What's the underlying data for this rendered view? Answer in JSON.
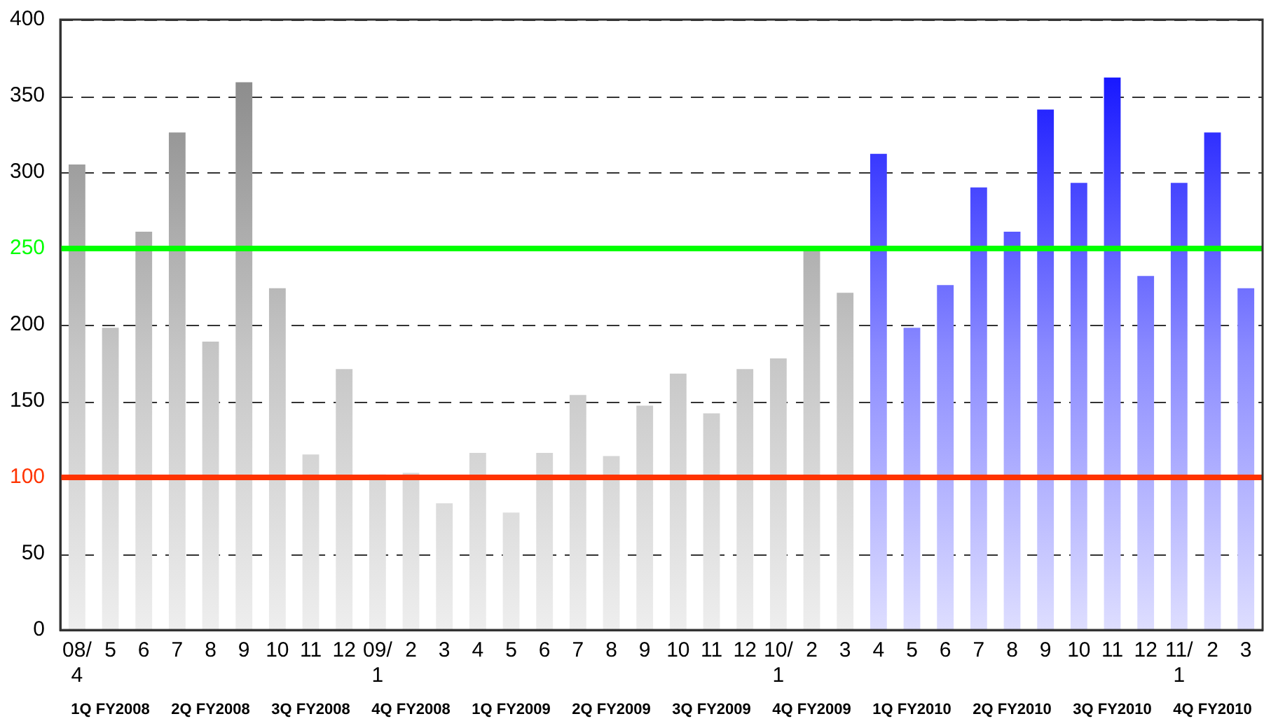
{
  "chart_data": {
    "type": "bar",
    "categories": [
      "08/\n4",
      "5",
      "6",
      "7",
      "8",
      "9",
      "10",
      "11",
      "12",
      "09/\n1",
      "2",
      "3",
      "4",
      "5",
      "6",
      "7",
      "8",
      "9",
      "10",
      "11",
      "12",
      "10/\n1",
      "2",
      "3",
      "4",
      "5",
      "6",
      "7",
      "8",
      "9",
      "10",
      "11",
      "12",
      "11/\n1",
      "2",
      "3"
    ],
    "values": [
      305,
      198,
      261,
      326,
      189,
      359,
      224,
      115,
      171,
      102,
      103,
      83,
      116,
      77,
      116,
      154,
      114,
      147,
      168,
      142,
      171,
      178,
      250,
      221,
      312,
      198,
      226,
      290,
      261,
      341,
      293,
      362,
      232,
      293,
      326,
      224
    ],
    "colors": [
      "#808080",
      "#808080",
      "#808080",
      "#808080",
      "#808080",
      "#808080",
      "#808080",
      "#808080",
      "#808080",
      "#808080",
      "#808080",
      "#808080",
      "#808080",
      "#808080",
      "#808080",
      "#808080",
      "#808080",
      "#808080",
      "#808080",
      "#808080",
      "#808080",
      "#808080",
      "#808080",
      "#808080",
      "#0000ff",
      "#0000ff",
      "#0000ff",
      "#0000ff",
      "#0000ff",
      "#0000ff",
      "#0000ff",
      "#0000ff",
      "#0000ff",
      "#0000ff",
      "#0000ff",
      "#0000ff"
    ],
    "ylim": [
      0,
      400
    ],
    "yticks": [
      0,
      50,
      100,
      150,
      200,
      250,
      300,
      350,
      400
    ],
    "grid": "y",
    "legend": false,
    "ref_lines": [
      {
        "axis": "y",
        "value": 250,
        "color": "#00ff00"
      },
      {
        "axis": "y",
        "value": 100,
        "color": "#ff3300"
      }
    ],
    "annotations": [
      "1Q FY2008",
      "2Q FY2008",
      "3Q FY2008",
      "4Q FY2008",
      "1Q FY2009",
      "2Q FY2009",
      "3Q FY2009",
      "4Q FY2009",
      "1Q FY2010",
      "2Q FY2010",
      "3Q FY2010",
      "4Q FY2010"
    ]
  }
}
